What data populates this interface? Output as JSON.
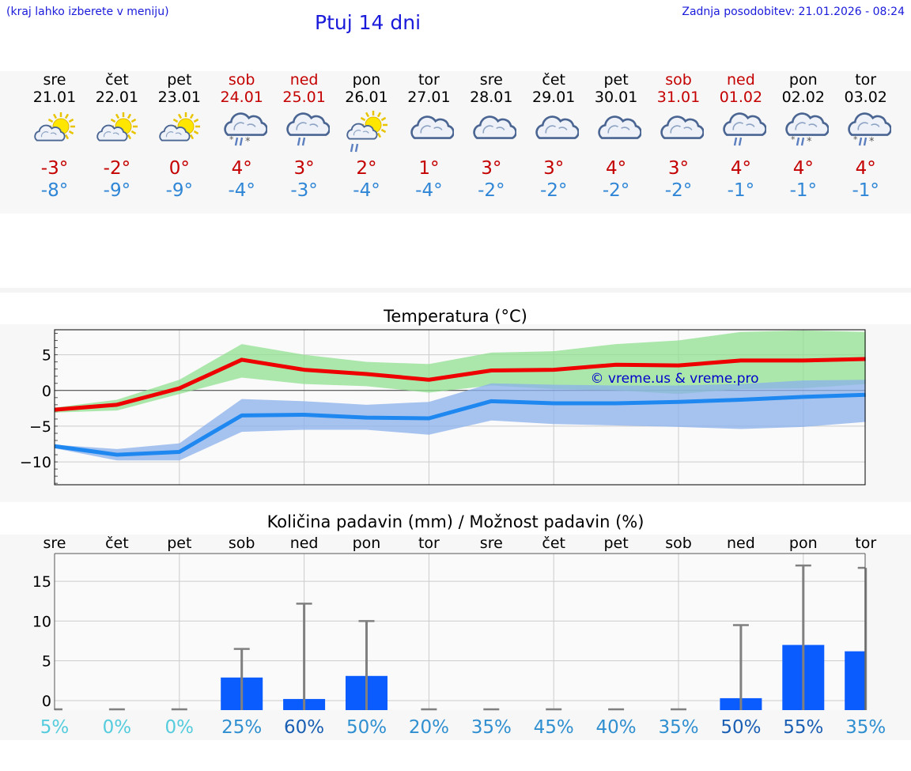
{
  "header": {
    "region_hint": "(kraj lahko izberete v meniju)",
    "title": "Ptuj 14 dni",
    "updated": "Zadnja posodobitev: 21.01.2026 - 08:24"
  },
  "colors": {
    "link_blue": "#1a1adb",
    "weekend_red": "#c40000",
    "max_temp": "#c40000",
    "min_temp": "#2f86d6",
    "max_line": "#ee0000",
    "max_band": "#90e090",
    "min_line": "#1e88f0",
    "min_band": "#8ab0ec",
    "precip_bar": "#0a5cff",
    "error_bar": "#808080"
  },
  "days": [
    {
      "wd": "sre",
      "date": "21.01",
      "weekend": false,
      "icon": "sun-cloud-icon",
      "hi": "-3°",
      "lo": "-8°"
    },
    {
      "wd": "čet",
      "date": "22.01",
      "weekend": false,
      "icon": "sun-cloud-icon",
      "hi": "-2°",
      "lo": "-9°"
    },
    {
      "wd": "pet",
      "date": "23.01",
      "weekend": false,
      "icon": "sun-cloud-icon",
      "hi": "0°",
      "lo": "-9°"
    },
    {
      "wd": "sob",
      "date": "24.01",
      "weekend": true,
      "icon": "cloud-sleet-icon",
      "hi": "4°",
      "lo": "-4°"
    },
    {
      "wd": "ned",
      "date": "25.01",
      "weekend": true,
      "icon": "cloud-rain-icon",
      "hi": "3°",
      "lo": "-3°"
    },
    {
      "wd": "pon",
      "date": "26.01",
      "weekend": false,
      "icon": "sun-cloud-rain-icon",
      "hi": "2°",
      "lo": "-4°"
    },
    {
      "wd": "tor",
      "date": "27.01",
      "weekend": false,
      "icon": "cloud-icon",
      "hi": "1°",
      "lo": "-4°"
    },
    {
      "wd": "sre",
      "date": "28.01",
      "weekend": false,
      "icon": "cloud-icon",
      "hi": "3°",
      "lo": "-2°"
    },
    {
      "wd": "čet",
      "date": "29.01",
      "weekend": false,
      "icon": "cloud-icon",
      "hi": "3°",
      "lo": "-2°"
    },
    {
      "wd": "pet",
      "date": "30.01",
      "weekend": false,
      "icon": "cloud-icon",
      "hi": "4°",
      "lo": "-2°"
    },
    {
      "wd": "sob",
      "date": "31.01",
      "weekend": true,
      "icon": "cloud-icon",
      "hi": "3°",
      "lo": "-2°"
    },
    {
      "wd": "ned",
      "date": "01.02",
      "weekend": true,
      "icon": "cloud-rain-icon",
      "hi": "4°",
      "lo": "-1°"
    },
    {
      "wd": "pon",
      "date": "02.02",
      "weekend": false,
      "icon": "cloud-sleet-icon",
      "hi": "4°",
      "lo": "-1°"
    },
    {
      "wd": "tor",
      "date": "03.02",
      "weekend": false,
      "icon": "cloud-sleet-icon",
      "hi": "4°",
      "lo": "-1°"
    }
  ],
  "chart_data": [
    {
      "type": "line",
      "title": "Temperatura (°C)",
      "watermark": "© vreme.us & vreme.pro",
      "x": [
        0,
        1,
        2,
        3,
        4,
        5,
        6,
        7,
        8,
        9,
        10,
        11,
        12,
        13
      ],
      "ylim": [
        -13.2,
        8.5
      ],
      "yticks": [
        5,
        0,
        -5,
        -10
      ],
      "ytick_labels": [
        "5",
        "0",
        "−5",
        "−10"
      ],
      "series": [
        {
          "name": "max",
          "values": [
            -2.7,
            -2.0,
            0.3,
            4.3,
            2.9,
            2.3,
            1.5,
            2.8,
            2.9,
            3.6,
            3.5,
            4.2,
            4.2,
            4.4
          ],
          "band_upper": [
            -2.4,
            -1.3,
            1.5,
            6.5,
            5.0,
            4.0,
            3.7,
            5.3,
            5.5,
            6.5,
            7.0,
            8.2,
            8.4,
            8.2
          ],
          "band_lower": [
            -3.1,
            -2.8,
            -0.5,
            1.8,
            0.9,
            0.6,
            -0.3,
            0.7,
            0.2,
            0.0,
            -0.5,
            0.2,
            0.3,
            0.9
          ]
        },
        {
          "name": "min",
          "values": [
            -7.8,
            -9.0,
            -8.6,
            -3.5,
            -3.4,
            -3.8,
            -3.9,
            -1.5,
            -1.8,
            -1.8,
            -1.6,
            -1.3,
            -0.9,
            -0.6
          ],
          "band_upper": [
            -7.6,
            -8.2,
            -7.4,
            -1.2,
            -1.5,
            -2.0,
            -1.6,
            1.0,
            0.8,
            0.7,
            0.7,
            0.9,
            1.4,
            1.5
          ],
          "band_lower": [
            -8.1,
            -9.8,
            -9.8,
            -5.8,
            -5.5,
            -5.5,
            -6.2,
            -4.2,
            -4.7,
            -4.9,
            -5.1,
            -5.4,
            -5.1,
            -4.4
          ]
        }
      ]
    },
    {
      "type": "bar",
      "title": "Količina padavin (mm) / Možnost padavin (%)",
      "categories": [
        "sre",
        "čet",
        "pet",
        "sob",
        "ned",
        "pon",
        "tor",
        "sre",
        "čet",
        "pet",
        "sob",
        "ned",
        "pon",
        "tor"
      ],
      "ylim": [
        -1.2,
        18.5
      ],
      "yticks": [
        15,
        10,
        5,
        0
      ],
      "values": [
        0,
        0,
        0,
        2.9,
        0.2,
        3.1,
        0,
        0,
        0,
        0,
        0,
        0.3,
        7.0,
        6.2
      ],
      "error_max": [
        0,
        0,
        0,
        6.5,
        12.2,
        10.0,
        0,
        0,
        0,
        0,
        0,
        9.5,
        17.0,
        16.7
      ],
      "probability": [
        "5%",
        "0%",
        "0%",
        "25%",
        "60%",
        "50%",
        "20%",
        "35%",
        "45%",
        "40%",
        "35%",
        "50%",
        "55%",
        "35%"
      ],
      "probability_colors": [
        "#55ccdd",
        "#55ccdd",
        "#55ccdd",
        "#2f8fd0",
        "#1a5fb4",
        "#2f8fd0",
        "#2f8fd0",
        "#2f8fd0",
        "#2f8fd0",
        "#2f8fd0",
        "#2f8fd0",
        "#1a5fb4",
        "#1a5fb4",
        "#2f8fd0"
      ]
    }
  ]
}
